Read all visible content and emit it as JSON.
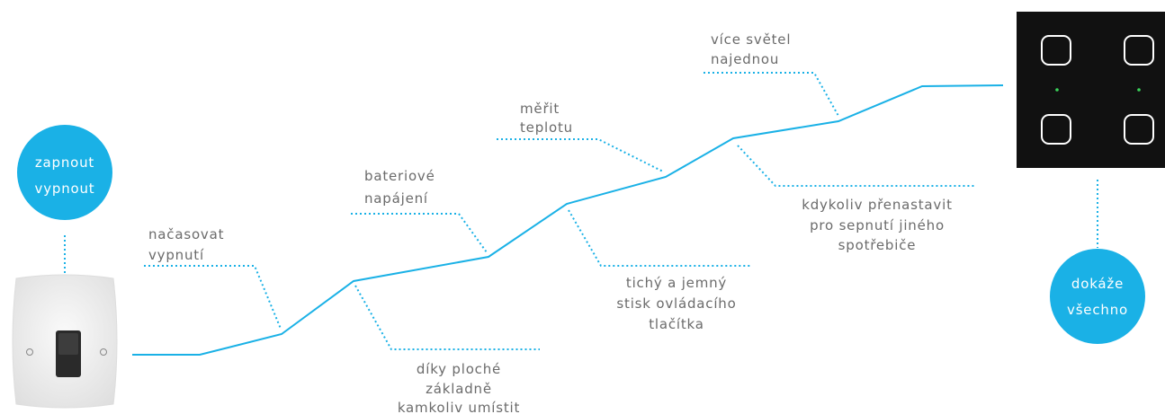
{
  "bubbles": [
    {
      "lines": [
        "zapnout",
        "vypnout"
      ]
    },
    {
      "lines": [
        "dokáže",
        "všechno"
      ]
    }
  ],
  "labels": [
    {
      "lines": [
        "načasovat",
        "vypnutí"
      ]
    },
    {
      "lines": [
        "bateriové",
        "napájení"
      ]
    },
    {
      "lines": [
        "měřit",
        "teplotu"
      ]
    },
    {
      "lines": [
        "více světel",
        "najednou"
      ]
    },
    {
      "lines": [
        "díky ploché",
        "základně",
        "kamkoliv umístit"
      ]
    },
    {
      "lines": [
        "tichý a jemný",
        "stisk ovládacího",
        "tlačítka"
      ]
    },
    {
      "lines": [
        "kdykoliv přenastavit",
        "pro sepnutí jiného",
        "spotřebiče"
      ]
    }
  ]
}
